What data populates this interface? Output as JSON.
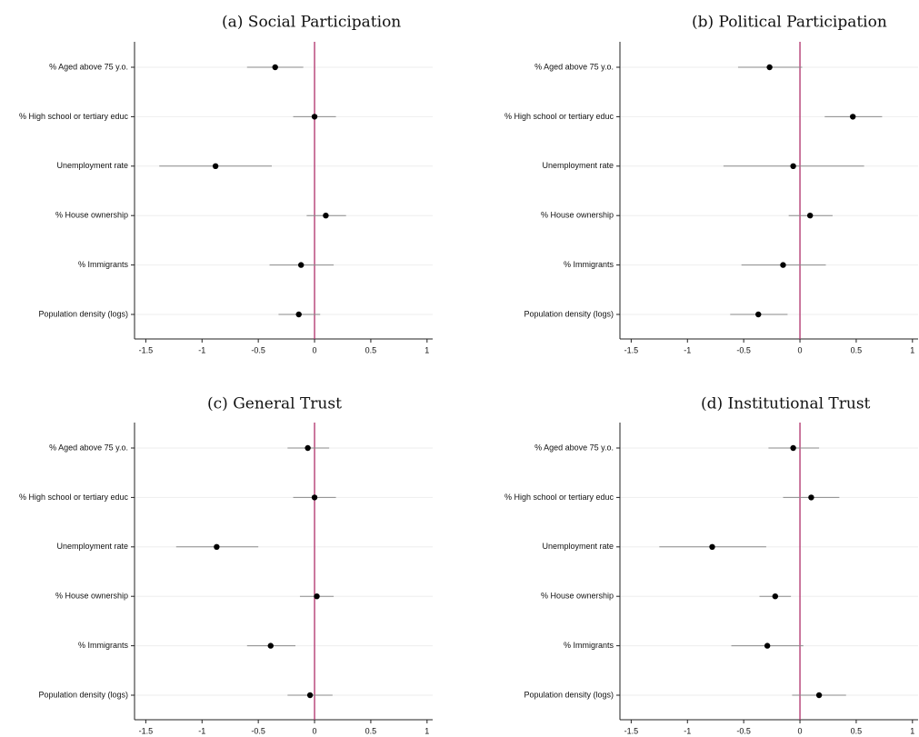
{
  "chart_data": [
    {
      "type": "scatter",
      "title": "(a)  Social Participation",
      "categories": [
        "% Aged above 75 y.o.",
        "% High school or tertiary educ",
        "Unemployment rate",
        "% House ownership",
        "% Immigrants",
        "Population density (logs)"
      ],
      "estimates": [
        -0.35,
        0.0,
        -0.88,
        0.1,
        -0.12,
        -0.14
      ],
      "ci_low": [
        -0.6,
        -0.19,
        -1.38,
        -0.07,
        -0.4,
        -0.32
      ],
      "ci_high": [
        -0.1,
        0.19,
        -0.38,
        0.28,
        0.17,
        0.05
      ],
      "xticks": [
        -1.5,
        -1,
        -0.5,
        0,
        0.5,
        1
      ],
      "tick_labels": [
        "-1.5",
        "-1",
        "-0.5",
        "0",
        "0.5",
        "1"
      ],
      "xlim": [
        -1.6,
        1.05
      ],
      "reference_line": 0,
      "grid": "horizontal"
    },
    {
      "type": "scatter",
      "title": "(b)  Political Participation",
      "categories": [
        "% Aged above 75 y.o.",
        "% High school or tertiary educ",
        "Unemployment rate",
        "% House ownership",
        "% Immigrants",
        "Population density (logs)"
      ],
      "estimates": [
        -0.27,
        0.47,
        -0.06,
        0.09,
        -0.15,
        -0.37
      ],
      "ci_low": [
        -0.55,
        0.22,
        -0.68,
        -0.1,
        -0.52,
        -0.62
      ],
      "ci_high": [
        0.02,
        0.73,
        0.57,
        0.29,
        0.23,
        -0.11
      ],
      "xticks": [
        -1.5,
        -1,
        -0.5,
        0,
        0.5,
        1
      ],
      "tick_labels": [
        "-1.5",
        "-1",
        "-0.5",
        "0",
        "0.5",
        "1"
      ],
      "xlim": [
        -1.6,
        1.05
      ],
      "reference_line": 0,
      "grid": "horizontal"
    },
    {
      "type": "scatter",
      "title": "(c)  General Trust",
      "categories": [
        "% Aged above 75 y.o.",
        "% High school or tertiary educ",
        "Unemployment rate",
        "% House ownership",
        "% Immigrants",
        "Population density (logs)"
      ],
      "estimates": [
        -0.06,
        0.0,
        -0.87,
        0.02,
        -0.39,
        -0.04
      ],
      "ci_low": [
        -0.24,
        -0.19,
        -1.23,
        -0.13,
        -0.6,
        -0.24
      ],
      "ci_high": [
        0.13,
        0.19,
        -0.5,
        0.17,
        -0.17,
        0.16
      ],
      "xticks": [
        -1.5,
        -1,
        -0.5,
        0,
        0.5,
        1
      ],
      "tick_labels": [
        "-1.5",
        "-1",
        "-0.5",
        "0",
        "0.5",
        "1"
      ],
      "xlim": [
        -1.6,
        1.05
      ],
      "reference_line": 0,
      "grid": "horizontal"
    },
    {
      "type": "scatter",
      "title": "(d)  Institutional Trust",
      "categories": [
        "% Aged above 75 y.o.",
        "% High school or tertiary educ",
        "Unemployment rate",
        "% House ownership",
        "% Immigrants",
        "Population density (logs)"
      ],
      "estimates": [
        -0.06,
        0.1,
        -0.78,
        -0.22,
        -0.29,
        0.17
      ],
      "ci_low": [
        -0.28,
        -0.15,
        -1.25,
        -0.36,
        -0.61,
        -0.07
      ],
      "ci_high": [
        0.17,
        0.35,
        -0.3,
        -0.08,
        0.03,
        0.41
      ],
      "xticks": [
        -1.5,
        -1,
        -0.5,
        0,
        0.5,
        1
      ],
      "tick_labels": [
        "-1.5",
        "-1",
        "-0.5",
        "0",
        "0.5",
        "1"
      ],
      "xlim": [
        -1.6,
        1.05
      ],
      "reference_line": 0,
      "grid": "horizontal"
    }
  ],
  "colors": {
    "reference_line": "#b0306a",
    "interval": "#8a8a8a",
    "point": "#000000",
    "gridline": "#eeeeee",
    "axis": "#222222"
  }
}
